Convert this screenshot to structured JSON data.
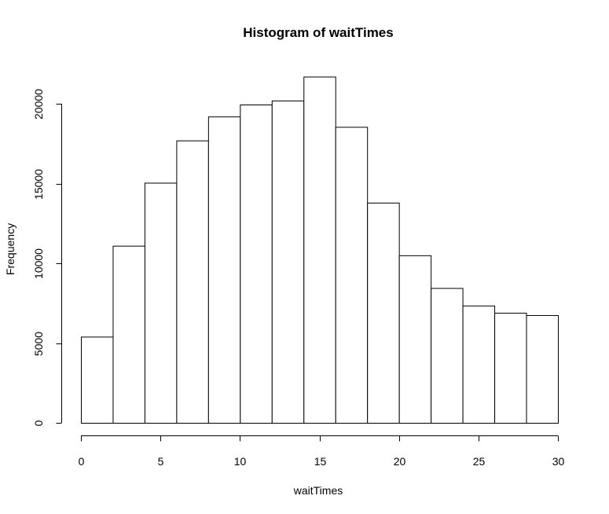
{
  "chart_data": {
    "type": "bar",
    "title": "Histogram of waitTimes",
    "xlabel": "waitTimes",
    "ylabel": "Frequency",
    "bin_edges": [
      0,
      2,
      4,
      6,
      8,
      10,
      12,
      14,
      16,
      18,
      20,
      22,
      24,
      26,
      28,
      30
    ],
    "values": [
      5400,
      11100,
      15050,
      17700,
      19200,
      19950,
      20200,
      21700,
      18550,
      13800,
      10500,
      8450,
      7350,
      6900,
      6750
    ],
    "xlim": [
      0,
      30
    ],
    "ylim": [
      0,
      20000
    ],
    "x_ticks": [
      0,
      5,
      10,
      15,
      20,
      25,
      30
    ],
    "y_ticks": [
      0,
      5000,
      10000,
      15000,
      20000
    ],
    "grid": false,
    "legend": "none"
  }
}
